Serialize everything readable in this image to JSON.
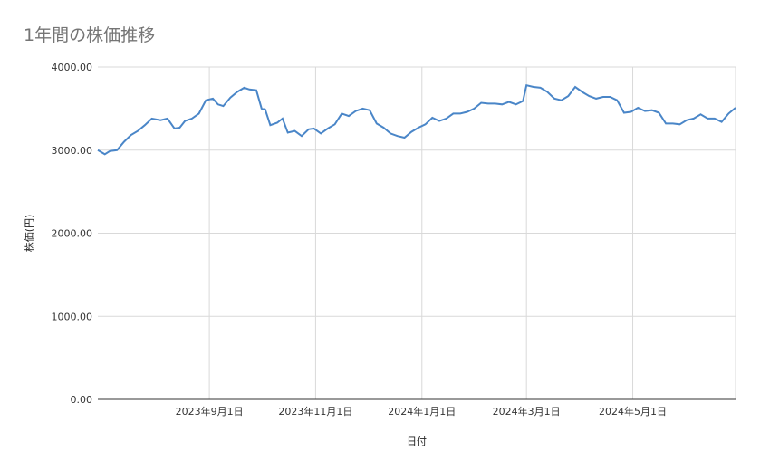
{
  "chart_data": {
    "type": "line",
    "title": "1年間の株価推移",
    "xlabel": "日付",
    "ylabel": "株価(円)",
    "ylim": [
      0,
      4000
    ],
    "yticks": [
      "0.00",
      "1000.00",
      "2000.00",
      "3000.00",
      "4000.00"
    ],
    "xticks": [
      "2023年9月1日",
      "2023年11月1日",
      "2024年1月1日",
      "2024年3月1日",
      "2024年5月1日"
    ],
    "xrange": [
      "2023-06-29",
      "2024-06-29"
    ],
    "grid": true,
    "line_color": "#4a86c8",
    "series": [
      {
        "x": [
          "2023-06-29",
          "2023-07-03",
          "2023-07-06",
          "2023-07-10",
          "2023-07-14",
          "2023-07-18",
          "2023-07-22",
          "2023-07-26",
          "2023-07-30",
          "2023-08-04",
          "2023-08-08",
          "2023-08-12",
          "2023-08-15",
          "2023-08-18",
          "2023-08-22",
          "2023-08-26",
          "2023-08-30",
          "2023-09-03",
          "2023-09-06",
          "2023-09-09",
          "2023-09-13",
          "2023-09-17",
          "2023-09-21",
          "2023-09-24",
          "2023-09-28",
          "2023-10-01",
          "2023-10-03",
          "2023-10-06",
          "2023-10-10",
          "2023-10-13",
          "2023-10-16",
          "2023-10-20",
          "2023-10-24",
          "2023-10-28",
          "2023-10-31",
          "2023-11-04",
          "2023-11-08",
          "2023-11-12",
          "2023-11-16",
          "2023-11-20",
          "2023-11-24",
          "2023-11-28",
          "2023-12-02",
          "2023-12-06",
          "2023-12-10",
          "2023-12-14",
          "2023-12-18",
          "2023-12-22",
          "2023-12-26",
          "2023-12-30",
          "2024-01-03",
          "2024-01-07",
          "2024-01-11",
          "2024-01-15",
          "2024-01-19",
          "2024-01-23",
          "2024-01-27",
          "2024-01-31",
          "2024-02-04",
          "2024-02-08",
          "2024-02-12",
          "2024-02-16",
          "2024-02-20",
          "2024-02-24",
          "2024-02-28",
          "2024-03-01",
          "2024-03-05",
          "2024-03-09",
          "2024-03-13",
          "2024-03-17",
          "2024-03-21",
          "2024-03-25",
          "2024-03-29",
          "2024-04-02",
          "2024-04-06",
          "2024-04-10",
          "2024-04-14",
          "2024-04-18",
          "2024-04-22",
          "2024-04-26",
          "2024-04-30",
          "2024-05-04",
          "2024-05-08",
          "2024-05-12",
          "2024-05-16",
          "2024-05-20",
          "2024-05-24",
          "2024-05-28",
          "2024-06-01",
          "2024-06-05",
          "2024-06-09",
          "2024-06-13",
          "2024-06-17",
          "2024-06-21",
          "2024-06-25",
          "2024-06-29"
        ],
        "values": [
          3000,
          2950,
          2990,
          3000,
          3100,
          3180,
          3230,
          3300,
          3380,
          3360,
          3380,
          3260,
          3270,
          3350,
          3380,
          3440,
          3600,
          3620,
          3550,
          3530,
          3630,
          3700,
          3750,
          3730,
          3720,
          3500,
          3490,
          3300,
          3330,
          3380,
          3210,
          3230,
          3170,
          3250,
          3260,
          3200,
          3260,
          3310,
          3440,
          3410,
          3470,
          3500,
          3480,
          3320,
          3270,
          3200,
          3170,
          3150,
          3220,
          3270,
          3310,
          3390,
          3350,
          3380,
          3440,
          3440,
          3460,
          3500,
          3570,
          3560,
          3560,
          3550,
          3580,
          3550,
          3590,
          3780,
          3760,
          3750,
          3700,
          3620,
          3600,
          3650,
          3760,
          3700,
          3650,
          3620,
          3640,
          3640,
          3600,
          3450,
          3460,
          3510,
          3470,
          3480,
          3450,
          3320,
          3320,
          3310,
          3360,
          3380,
          3430,
          3380,
          3380,
          3340,
          3440,
          3510
        ]
      }
    ]
  }
}
